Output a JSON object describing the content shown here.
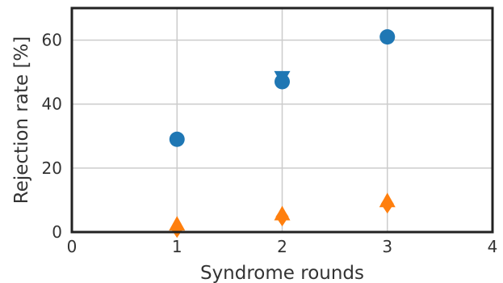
{
  "chart_data": {
    "type": "scatter",
    "xlabel": "Syndrome rounds",
    "ylabel": "Rejection rate [%]",
    "xlim": [
      0,
      4
    ],
    "ylim": [
      0,
      70
    ],
    "x_ticks": [
      0,
      1,
      2,
      3,
      4
    ],
    "y_ticks": [
      0,
      20,
      40,
      60
    ],
    "grid": true,
    "series": [
      {
        "color": "#1f77b4",
        "marker": "circle",
        "points": [
          {
            "x": 1,
            "y": 29.0
          },
          {
            "x": 2,
            "y": 47.0
          },
          {
            "x": 3,
            "y": 61.0
          }
        ],
        "markers_secondary": "triangle-down",
        "secondary_points": [
          {
            "x": 2,
            "y": 48.3
          }
        ]
      },
      {
        "color": "#ff7f0e",
        "marker": "diamond",
        "points": [
          {
            "x": 1,
            "y": 1.2
          },
          {
            "x": 2,
            "y": 4.8
          },
          {
            "x": 3,
            "y": 8.8
          }
        ],
        "markers_secondary": "triangle-up",
        "secondary_points": [
          {
            "x": 1,
            "y": 2.5
          },
          {
            "x": 2,
            "y": 5.7
          },
          {
            "x": 3,
            "y": 9.8
          }
        ]
      }
    ]
  }
}
